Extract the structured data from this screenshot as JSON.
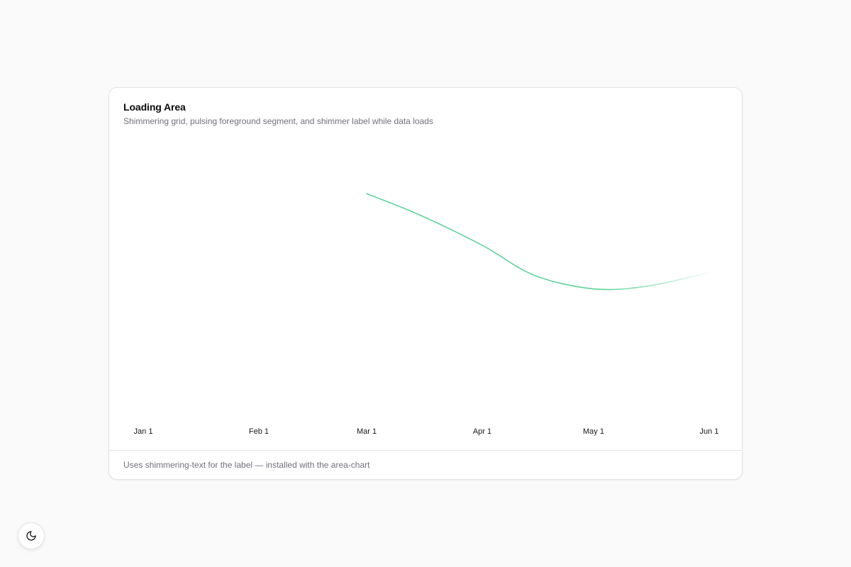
{
  "card": {
    "title": "Loading Area",
    "subtitle": "Shimmering grid, pulsing foreground segment, and shimmer label while data loads",
    "footer": "Uses shimmering-text for the label — installed with the area-chart"
  },
  "theme_toggle": {
    "icon": "moon-icon"
  },
  "colors": {
    "line": "#4ade80",
    "line_stroke": "#5fd39a",
    "grid": "#e4e4e7",
    "background": "#fafafa",
    "card": "#ffffff"
  },
  "chart_data": {
    "type": "area",
    "title": "",
    "xlabel": "",
    "ylabel": "",
    "x_tick_labels": [
      "Jan 1",
      "Feb 1",
      "Mar 1",
      "Apr 1",
      "May 1",
      "Jun 1"
    ],
    "grid": true,
    "grid_style": "dashed-horizontal",
    "state": "loading",
    "series": [
      {
        "segment": "foreground-pulse",
        "x": [
          "Mar 1",
          "Mar 15",
          "Apr 1",
          "Apr 15",
          "May 1",
          "May 15",
          "Jun 1"
        ],
        "y": [
          0.82,
          0.74,
          0.63,
          0.52,
          0.47,
          0.48,
          0.53
        ]
      }
    ]
  }
}
